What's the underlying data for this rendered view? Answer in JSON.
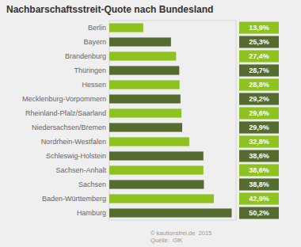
{
  "chart_data": {
    "type": "bar",
    "orientation": "horizontal",
    "title": "Nachbarschaftsstreit-Quote nach Bundesland",
    "categories": [
      "Berlin",
      "Bayern",
      "Brandenburg",
      "Thüringen",
      "Hessen",
      "Mecklenburg-Vorpommern",
      "Rheinland-Pfalz/Saarland",
      "Niedersachsen/Bremen",
      "Nordrhein-Westfalen",
      "Schleswig-Holstein",
      "Sachsen-Anhalt",
      "Sachsen",
      "Baden-Württemberg",
      "Hamburg"
    ],
    "values": [
      13.9,
      25.3,
      27.4,
      28.7,
      28.8,
      29.2,
      29.6,
      29.9,
      32.8,
      38.6,
      38.6,
      38.8,
      42.9,
      50.2
    ],
    "value_labels": [
      "13,9%",
      "25,3%",
      "27,4%",
      "28,7%",
      "28,8%",
      "29,2%",
      "29,6%",
      "29,9%",
      "32,8%",
      "38,6%",
      "38,6%",
      "38,8%",
      "42,9%",
      "50,2%"
    ],
    "colors": [
      "#8dc21f",
      "#556b2f",
      "#8dc21f",
      "#556b2f",
      "#8dc21f",
      "#556b2f",
      "#8dc21f",
      "#556b2f",
      "#8dc21f",
      "#556b2f",
      "#8dc21f",
      "#556b2f",
      "#8dc21f",
      "#556b2f"
    ],
    "data_labels": true,
    "xlim": [
      0,
      52
    ],
    "tick_labels": "y",
    "grid": false,
    "annotations": [
      "© kautionsfrei.de  2015\nQuelle:  GfK"
    ]
  }
}
